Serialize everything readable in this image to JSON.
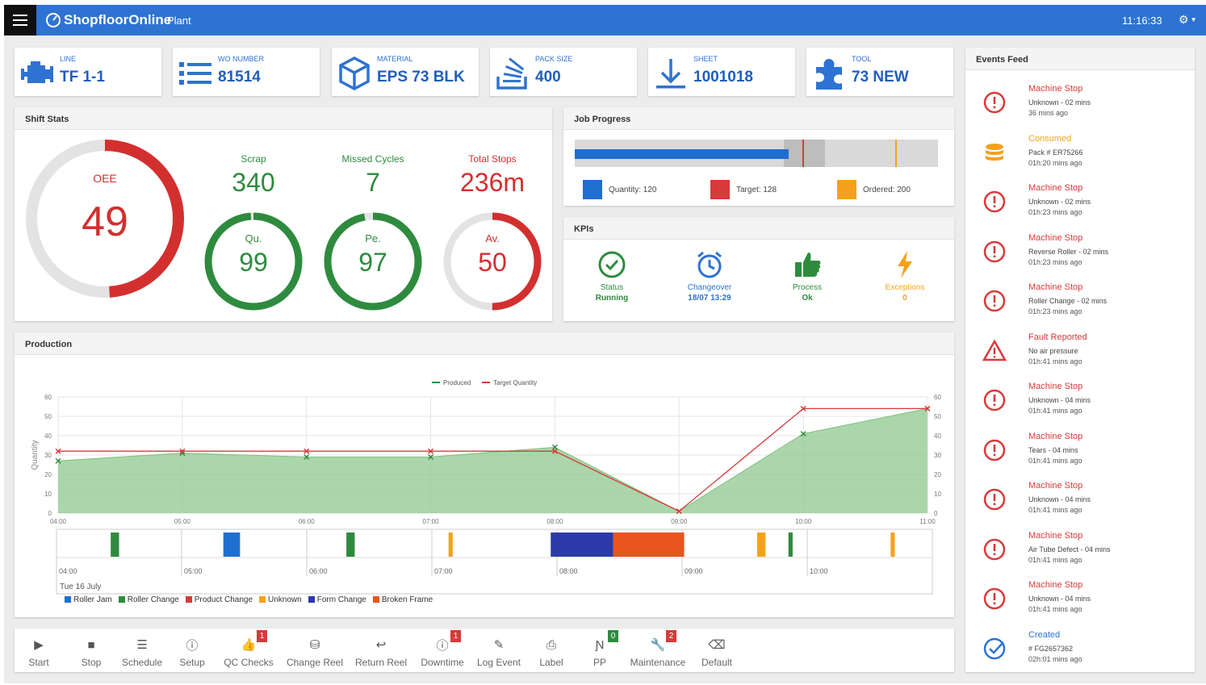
{
  "topbar": {
    "brand": "ShopfloorOnline",
    "page": "Plant",
    "clock": "11:16:33",
    "menu_icon": "hamburger-icon",
    "settings_icon": "gear-icon"
  },
  "info_cards": [
    {
      "label": "Line",
      "value": "TF 1-1",
      "icon": "engine-icon"
    },
    {
      "label": "WO NUMBER",
      "value": "81514",
      "icon": "list-icon"
    },
    {
      "label": "MATERIAL",
      "value": "EPS 73 BLK",
      "icon": "cube-icon"
    },
    {
      "label": "PACK SIZE",
      "value": "400",
      "icon": "stack-icon"
    },
    {
      "label": "SHEET",
      "value": "1001018",
      "icon": "download-icon"
    },
    {
      "label": "TOOL",
      "value": "73 NEW",
      "icon": "puzzle-icon"
    }
  ],
  "shift_stats": {
    "title": "Shift Stats",
    "oee": {
      "label": "OEE",
      "value": "49",
      "fraction": 0.49
    },
    "scrap": {
      "label": "Scrap",
      "value": "340"
    },
    "missed_cycles": {
      "label": "Missed Cycles",
      "value": "7"
    },
    "total_stops": {
      "label": "Total Stops",
      "value": "236m"
    },
    "quality": {
      "label": "Qu.",
      "value": "99",
      "fraction": 0.99
    },
    "performance": {
      "label": "Pe.",
      "value": "97",
      "fraction": 0.97
    },
    "availability": {
      "label": "Av.",
      "value": "50",
      "fraction": 0.5
    }
  },
  "job_progress": {
    "title": "Job Progress",
    "quantity_label": "Quantity: 120",
    "target_label": "Target: 128",
    "ordered_label": "Ordered: 200",
    "quantity": 120,
    "target": 128,
    "ordered": 200,
    "colors": {
      "quantity": "#1f6fd1",
      "target": "#d83a3a",
      "ordered": "#f5a11c"
    }
  },
  "kpis": {
    "title": "KPIs",
    "items": [
      {
        "label": "Status",
        "value": "Running",
        "icon": "check-circle-icon",
        "color": "#2e8b3e"
      },
      {
        "label": "Changeover",
        "value": "18/07 13:29",
        "icon": "alarm-clock-icon",
        "color": "#2e73d2"
      },
      {
        "label": "Process",
        "value": "Ok",
        "icon": "thumbs-up-icon",
        "color": "#2e8b3e"
      },
      {
        "label": "Exceptions",
        "value": "0",
        "icon": "lightning-icon",
        "color": "#f5a11c"
      }
    ]
  },
  "production": {
    "title": "Production",
    "date_label": "Tue 16 July",
    "timeline_hours": [
      "04:00",
      "05:00",
      "06:00",
      "07:00",
      "08:00",
      "09:00",
      "10:00"
    ],
    "legend": [
      {
        "name": "Roller Jam",
        "color": "#1f6fd1"
      },
      {
        "name": "Roller Change",
        "color": "#2e8b3e"
      },
      {
        "name": "Product Change",
        "color": "#d83a3a"
      },
      {
        "name": "Unknown",
        "color": "#f5a11c"
      },
      {
        "name": "Form Change",
        "color": "#2b3aa8"
      },
      {
        "name": "Broken Frame",
        "color": "#e8561e"
      }
    ],
    "timeline_events": [
      {
        "type": "Roller Change",
        "start": "04:26",
        "end": "04:30",
        "color": "#2e8b3e"
      },
      {
        "type": "Roller Jam",
        "start": "05:20",
        "end": "05:28",
        "color": "#1f6fd1"
      },
      {
        "type": "Roller Change",
        "start": "06:19",
        "end": "06:23",
        "color": "#2e8b3e"
      },
      {
        "type": "Unknown",
        "start": "07:08",
        "end": "07:10",
        "color": "#f5a11c"
      },
      {
        "type": "Form Change",
        "start": "07:57",
        "end": "08:27",
        "color": "#2b3aa8"
      },
      {
        "type": "Broken Frame",
        "start": "08:27",
        "end": "09:01",
        "color": "#e8561e"
      },
      {
        "type": "Unknown",
        "start": "09:36",
        "end": "09:40",
        "color": "#f5a11c"
      },
      {
        "type": "Roller Change",
        "start": "09:51",
        "end": "09:53",
        "color": "#2e8b3e"
      },
      {
        "type": "Unknown",
        "start": "10:40",
        "end": "10:42",
        "color": "#f5a11c"
      }
    ]
  },
  "chart_data": {
    "type": "area",
    "title": "",
    "ylabel": "Quantity",
    "xlabel": "",
    "x": [
      "04:00",
      "05:00",
      "06:00",
      "07:00",
      "08:00",
      "09:00",
      "10:00",
      "11:00"
    ],
    "ylim": [
      0,
      60
    ],
    "yticks": [
      0,
      10,
      20,
      30,
      40,
      50,
      60
    ],
    "grid": true,
    "legend_position": "top-center",
    "series": [
      {
        "name": "Produced",
        "color": "#2e8b3e",
        "x": [
          "04:00",
          "05:00",
          "06:00",
          "07:00",
          "08:00",
          "09:00",
          "10:00",
          "11:00"
        ],
        "values": [
          27,
          31,
          29,
          29,
          34,
          1,
          41,
          54
        ]
      },
      {
        "name": "Target Quantity",
        "color": "#d83a3a",
        "x": [
          "04:00",
          "05:00",
          "06:00",
          "07:00",
          "08:00",
          "09:00",
          "10:00",
          "11:00"
        ],
        "values": [
          32,
          32,
          32,
          32,
          32,
          1,
          54,
          54
        ]
      }
    ]
  },
  "actions": [
    {
      "label": "Start",
      "icon": "play-icon"
    },
    {
      "label": "Stop",
      "icon": "stop-icon"
    },
    {
      "label": "Schedule",
      "icon": "list-icon"
    },
    {
      "label": "Setup",
      "icon": "info-icon"
    },
    {
      "label": "QC Checks",
      "icon": "thumbs-up-icon",
      "badge": "1",
      "badge_color": "#d83a3a"
    },
    {
      "label": "Change Reel",
      "icon": "database-icon"
    },
    {
      "label": "Return Reel",
      "icon": "return-icon"
    },
    {
      "label": "Downtime",
      "icon": "alert-circle-icon",
      "badge": "1",
      "badge_color": "#d83a3a"
    },
    {
      "label": "Log Event",
      "icon": "pencil-icon"
    },
    {
      "label": "Label",
      "icon": "printer-icon"
    },
    {
      "label": "PP",
      "icon": "pp-icon",
      "badge": "0",
      "badge_color": "#2e8b3e"
    },
    {
      "label": "Maintenance",
      "icon": "wrench-icon",
      "badge": "2",
      "badge_color": "#d83a3a"
    },
    {
      "label": "Default",
      "icon": "backspace-icon"
    }
  ],
  "events_feed": {
    "title": "Events Feed",
    "items": [
      {
        "title": "Machine Stop",
        "desc": "Unknown - 02 mins",
        "time": "36 mins ago",
        "icon": "alert-circle-icon",
        "color": "#d83a3a"
      },
      {
        "title": "Consumed",
        "desc": "Pack # ER75266",
        "time": "01h:20 mins ago",
        "icon": "database-icon",
        "color": "#f5a11c"
      },
      {
        "title": "Machine Stop",
        "desc": "Unknown - 02 mins",
        "time": "01h:23 mins ago",
        "icon": "alert-circle-icon",
        "color": "#d83a3a"
      },
      {
        "title": "Machine Stop",
        "desc": "Reverse Roller - 02 mins",
        "time": "01h:23 mins ago",
        "icon": "alert-circle-icon",
        "color": "#d83a3a"
      },
      {
        "title": "Machine Stop",
        "desc": "Roller Change - 02 mins",
        "time": "01h:23 mins ago",
        "icon": "alert-circle-icon",
        "color": "#d83a3a"
      },
      {
        "title": "Fault Reported",
        "desc": "No air pressure",
        "time": "01h:41 mins ago",
        "icon": "warning-triangle-icon",
        "color": "#d83a3a"
      },
      {
        "title": "Machine Stop",
        "desc": "Unknown - 04 mins",
        "time": "01h:41 mins ago",
        "icon": "alert-circle-icon",
        "color": "#d83a3a"
      },
      {
        "title": "Machine Stop",
        "desc": "Tears - 04 mins",
        "time": "01h:41 mins ago",
        "icon": "alert-circle-icon",
        "color": "#d83a3a"
      },
      {
        "title": "Machine Stop",
        "desc": "Unknown - 04 mins",
        "time": "01h:41 mins ago",
        "icon": "alert-circle-icon",
        "color": "#d83a3a"
      },
      {
        "title": "Machine Stop",
        "desc": "Air Tube Defect - 04 mins",
        "time": "01h:41 mins ago",
        "icon": "alert-circle-icon",
        "color": "#d83a3a"
      },
      {
        "title": "Machine Stop",
        "desc": "Unknown - 04 mins",
        "time": "01h:41 mins ago",
        "icon": "alert-circle-icon",
        "color": "#d83a3a"
      },
      {
        "title": "Created",
        "desc": "# FG2657362",
        "time": "02h:01 mins ago",
        "icon": "check-circle-icon",
        "color": "#2e73d2"
      }
    ]
  }
}
